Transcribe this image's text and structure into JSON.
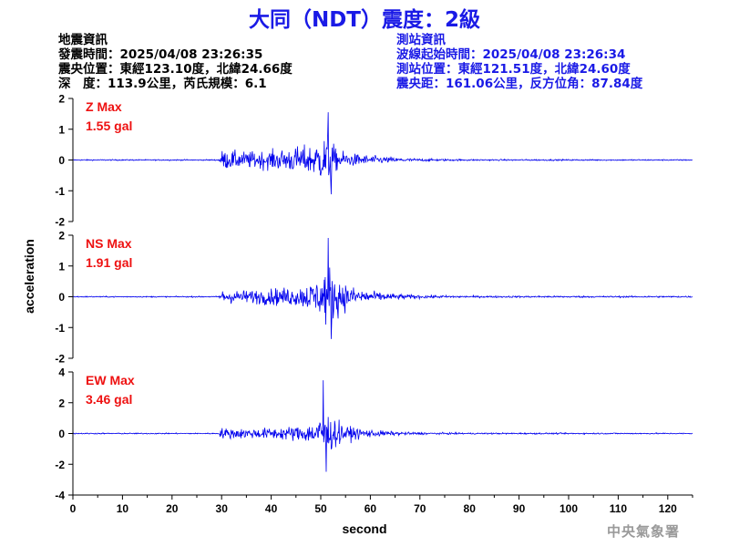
{
  "title": "大同（NDT）震度：2級",
  "quake_info": {
    "heading": "地震資訊",
    "origin_time": "發震時間：2025/04/08 23:26:35",
    "epicenter": "震央位置：東經123.10度，北緯24.66度",
    "depth_magnitude": "深　度：113.9公里，芮氏規模：6.1"
  },
  "station_info": {
    "heading": "測站資訊",
    "wave_start": "波線起始時間：2025/04/08 23:26:34",
    "station_location": "測站位置：東經121.51度，北緯24.60度",
    "distance_azimuth": "震央距：161.06公里，反方位角：87.84度"
  },
  "agency": "中央氣象署",
  "chart_data": {
    "type": "line",
    "xlabel": "second",
    "ylabel": "acceleration",
    "xlim": [
      0,
      125
    ],
    "xticks": [
      0,
      10,
      20,
      30,
      40,
      50,
      60,
      70,
      80,
      90,
      100,
      110,
      120
    ],
    "line_color": "#0000ee",
    "label_color": "#ee1111",
    "onset_s": 29.5,
    "sample_interval_s": 0.1,
    "panels": [
      {
        "component": "Z",
        "label_line1": "Z Max",
        "label_line2": "1.55 gal",
        "ylim": [
          -2,
          2
        ],
        "yticks": [
          -2,
          -1,
          0,
          1,
          2
        ],
        "peak": 1.55,
        "peak_time_s": 51.5,
        "envelope_s": [
          [
            0,
            0.03
          ],
          [
            29.4,
            0.03
          ],
          [
            30,
            0.5
          ],
          [
            35,
            0.45
          ],
          [
            40,
            0.5
          ],
          [
            45,
            0.7
          ],
          [
            48,
            0.8
          ],
          [
            50,
            1.1
          ],
          [
            51.5,
            1.5
          ],
          [
            53,
            0.6
          ],
          [
            56,
            0.35
          ],
          [
            60,
            0.25
          ],
          [
            65,
            0.12
          ],
          [
            70,
            0.07
          ],
          [
            80,
            0.04
          ],
          [
            125,
            0.03
          ]
        ]
      },
      {
        "component": "NS",
        "label_line1": "NS Max",
        "label_line2": "1.91 gal",
        "ylim": [
          -2,
          2
        ],
        "yticks": [
          -2,
          -1,
          0,
          1,
          2
        ],
        "peak": 1.91,
        "peak_time_s": 51.5,
        "envelope_s": [
          [
            0,
            0.03
          ],
          [
            29.4,
            0.03
          ],
          [
            30,
            0.35
          ],
          [
            35,
            0.35
          ],
          [
            40,
            0.45
          ],
          [
            45,
            0.5
          ],
          [
            48,
            0.75
          ],
          [
            50,
            1.0
          ],
          [
            51.5,
            1.85
          ],
          [
            53,
            1.1
          ],
          [
            56,
            0.55
          ],
          [
            60,
            0.3
          ],
          [
            65,
            0.15
          ],
          [
            70,
            0.09
          ],
          [
            80,
            0.05
          ],
          [
            125,
            0.04
          ]
        ]
      },
      {
        "component": "EW",
        "label_line1": "EW Max",
        "label_line2": "3.46 gal",
        "ylim": [
          -4,
          4
        ],
        "yticks": [
          -4,
          -2,
          0,
          2,
          4
        ],
        "peak": 3.46,
        "peak_time_s": 50.5,
        "envelope_s": [
          [
            0,
            0.06
          ],
          [
            29.4,
            0.06
          ],
          [
            30,
            0.6
          ],
          [
            35,
            0.5
          ],
          [
            40,
            0.6
          ],
          [
            45,
            0.8
          ],
          [
            48,
            1.0
          ],
          [
            50,
            1.8
          ],
          [
            50.5,
            3.4
          ],
          [
            52,
            1.8
          ],
          [
            55,
            0.8
          ],
          [
            60,
            0.4
          ],
          [
            65,
            0.2
          ],
          [
            70,
            0.12
          ],
          [
            80,
            0.08
          ],
          [
            125,
            0.06
          ]
        ]
      }
    ]
  }
}
